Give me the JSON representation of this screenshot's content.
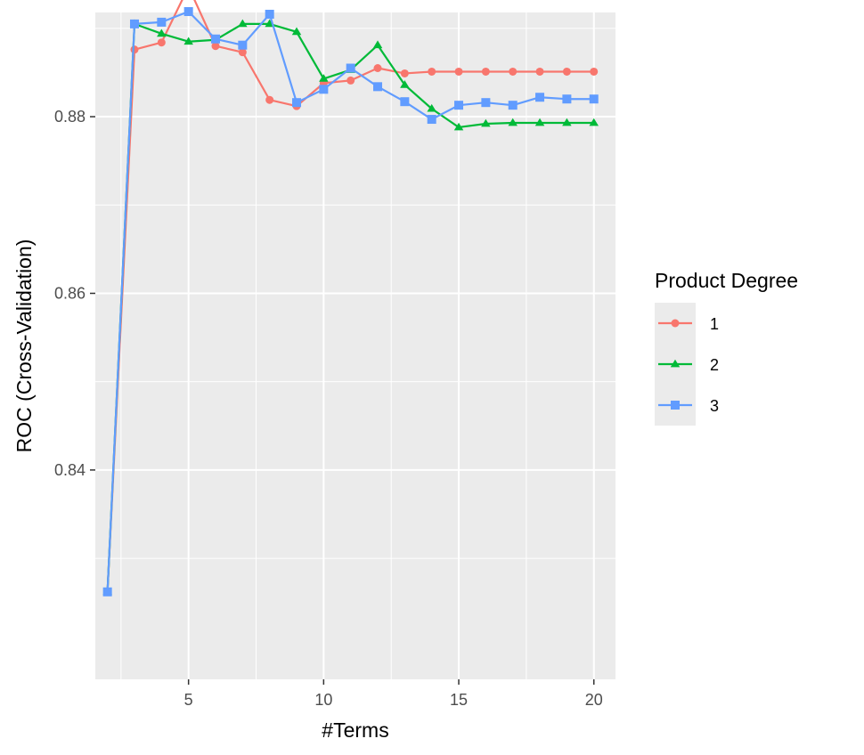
{
  "chart_data": {
    "type": "line",
    "title": "",
    "xlabel": "#Terms",
    "ylabel": "ROC (Cross-Validation)",
    "xlim": [
      1.55,
      20.8
    ],
    "ylim": [
      0.8163,
      0.8918
    ],
    "x_ticks": [
      5,
      10,
      15,
      20
    ],
    "x_tick_labels": [
      "5",
      "10",
      "15",
      "20"
    ],
    "y_ticks": [
      0.84,
      0.86,
      0.88
    ],
    "y_tick_labels": [
      "0.84",
      "0.86",
      "0.88"
    ],
    "grid": true,
    "legend": {
      "title": "Product Degree",
      "position": "right"
    },
    "series": [
      {
        "name": "1",
        "color": "#F8766D",
        "marker": "circle",
        "x": [
          2,
          3,
          4,
          5,
          6,
          7,
          8,
          9,
          10,
          11,
          12,
          13,
          14,
          15,
          16,
          17,
          18,
          19,
          20
        ],
        "y": [
          0.8262,
          0.8876,
          0.8884,
          0.8947,
          0.888,
          0.8873,
          0.8819,
          0.8812,
          0.8838,
          0.8841,
          0.8855,
          0.8849,
          0.8851,
          0.8851,
          0.8851,
          0.8851,
          0.8851,
          0.8851,
          0.8851
        ]
      },
      {
        "name": "2",
        "color": "#00BA38",
        "marker": "triangle",
        "x": [
          2,
          3,
          4,
          5,
          6,
          7,
          8,
          9,
          10,
          11,
          12,
          13,
          14,
          15,
          16,
          17,
          18,
          19,
          20
        ],
        "y": [
          0.8262,
          0.8905,
          0.8894,
          0.8885,
          0.8887,
          0.8905,
          0.8905,
          0.8896,
          0.8843,
          0.8853,
          0.8881,
          0.8836,
          0.8809,
          0.8788,
          0.8792,
          0.8793,
          0.8793,
          0.8793,
          0.8793
        ]
      },
      {
        "name": "3",
        "color": "#619CFF",
        "marker": "square",
        "x": [
          2,
          3,
          4,
          5,
          6,
          7,
          8,
          9,
          10,
          11,
          12,
          13,
          14,
          15,
          16,
          17,
          18,
          19,
          20
        ],
        "y": [
          0.8262,
          0.8905,
          0.8907,
          0.8919,
          0.8888,
          0.8881,
          0.8916,
          0.8816,
          0.8831,
          0.8855,
          0.8834,
          0.8817,
          0.8797,
          0.8813,
          0.8816,
          0.8813,
          0.8822,
          0.882,
          0.882
        ]
      }
    ]
  }
}
